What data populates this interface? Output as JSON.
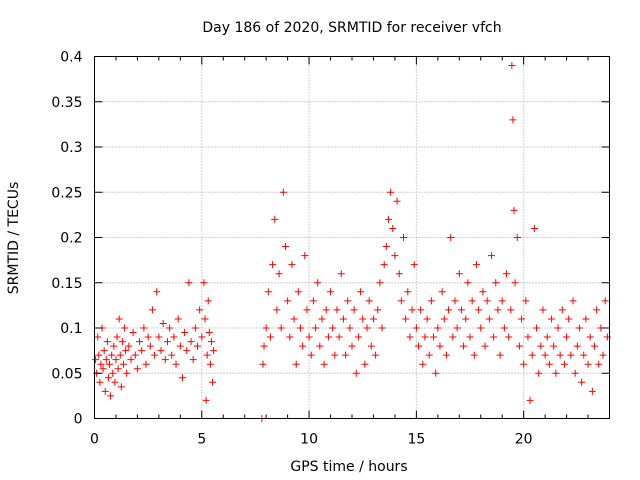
{
  "chart_data": {
    "type": "scatter",
    "title": "Day 186 of 2020, SRMTID for receiver vfch",
    "xlabel": "GPS time / hours",
    "ylabel": "SRMTID / TECUs",
    "xlim": [
      0,
      24
    ],
    "ylim": [
      0,
      0.4
    ],
    "xticks": [
      0,
      5,
      10,
      15,
      20
    ],
    "xtick_labels": [
      "0",
      "5",
      "10",
      "15",
      "20"
    ],
    "yticks": [
      0,
      0.05,
      0.1,
      0.15,
      0.2,
      0.25,
      0.3,
      0.35,
      0.4
    ],
    "ytick_labels": [
      "0",
      "0.05",
      "0.1",
      "0.15",
      "0.2",
      "0.25",
      "0.3",
      "0.35",
      "0.4"
    ],
    "grid": true,
    "marker": "+",
    "color": "#ff0000",
    "series": [
      {
        "name": "SRMTID",
        "points": [
          [
            0.05,
            0.065
          ],
          [
            0.1,
            0.05
          ],
          [
            0.15,
            0.09
          ],
          [
            0.2,
            0.07
          ],
          [
            0.25,
            0.04
          ],
          [
            0.3,
            0.06
          ],
          [
            0.35,
            0.1
          ],
          [
            0.4,
            0.055
          ],
          [
            0.45,
            0.075
          ],
          [
            0.5,
            0.03
          ],
          [
            0.55,
            0.065
          ],
          [
            0.6,
            0.085
          ],
          [
            0.65,
            0.045
          ],
          [
            0.7,
            0.06
          ],
          [
            0.75,
            0.025
          ],
          [
            0.8,
            0.07
          ],
          [
            0.85,
            0.05
          ],
          [
            0.9,
            0.08
          ],
          [
            0.95,
            0.04
          ],
          [
            1.0,
            0.065
          ],
          [
            1.05,
            0.09
          ],
          [
            1.1,
            0.055
          ],
          [
            1.15,
            0.11
          ],
          [
            1.2,
            0.07
          ],
          [
            1.25,
            0.035
          ],
          [
            1.3,
            0.085
          ],
          [
            1.35,
            0.06
          ],
          [
            1.4,
            0.1
          ],
          [
            1.45,
            0.075
          ],
          [
            1.5,
            0.05
          ],
          [
            1.6,
            0.08
          ],
          [
            1.7,
            0.065
          ],
          [
            1.8,
            0.095
          ],
          [
            1.9,
            0.07
          ],
          [
            2.0,
            0.055
          ],
          [
            2.1,
            0.085
          ],
          [
            2.2,
            0.075
          ],
          [
            2.3,
            0.1
          ],
          [
            2.4,
            0.06
          ],
          [
            2.5,
            0.09
          ],
          [
            2.6,
            0.08
          ],
          [
            2.7,
            0.12
          ],
          [
            2.8,
            0.07
          ],
          [
            2.9,
            0.14
          ],
          [
            3.0,
            0.09
          ],
          [
            3.1,
            0.075
          ],
          [
            3.2,
            0.105
          ],
          [
            3.3,
            0.065
          ],
          [
            3.4,
            0.085
          ],
          [
            3.5,
            0.1
          ],
          [
            3.6,
            0.07
          ],
          [
            3.7,
            0.09
          ],
          [
            3.8,
            0.06
          ],
          [
            3.9,
            0.11
          ],
          [
            4.0,
            0.08
          ],
          [
            4.1,
            0.045
          ],
          [
            4.2,
            0.095
          ],
          [
            4.3,
            0.075
          ],
          [
            4.4,
            0.15
          ],
          [
            4.5,
            0.085
          ],
          [
            4.6,
            0.065
          ],
          [
            4.7,
            0.1
          ],
          [
            4.8,
            0.08
          ],
          [
            4.9,
            0.12
          ],
          [
            5.0,
            0.09
          ],
          [
            5.1,
            0.15
          ],
          [
            5.15,
            0.11
          ],
          [
            5.2,
            0.02
          ],
          [
            5.25,
            0.07
          ],
          [
            5.3,
            0.13
          ],
          [
            5.35,
            0.095
          ],
          [
            5.4,
            0.06
          ],
          [
            5.45,
            0.085
          ],
          [
            5.5,
            0.04
          ],
          [
            5.55,
            0.075
          ],
          [
            7.8,
            0.0
          ],
          [
            7.85,
            0.06
          ],
          [
            7.9,
            0.08
          ],
          [
            8.0,
            0.1
          ],
          [
            8.1,
            0.14
          ],
          [
            8.2,
            0.09
          ],
          [
            8.3,
            0.17
          ],
          [
            8.4,
            0.22
          ],
          [
            8.5,
            0.12
          ],
          [
            8.6,
            0.16
          ],
          [
            8.7,
            0.1
          ],
          [
            8.8,
            0.25
          ],
          [
            8.9,
            0.19
          ],
          [
            9.0,
            0.13
          ],
          [
            9.1,
            0.09
          ],
          [
            9.2,
            0.17
          ],
          [
            9.3,
            0.11
          ],
          [
            9.4,
            0.06
          ],
          [
            9.5,
            0.14
          ],
          [
            9.6,
            0.1
          ],
          [
            9.7,
            0.08
          ],
          [
            9.8,
            0.18
          ],
          [
            9.9,
            0.12
          ],
          [
            10.0,
            0.09
          ],
          [
            10.1,
            0.07
          ],
          [
            10.2,
            0.13
          ],
          [
            10.3,
            0.1
          ],
          [
            10.4,
            0.15
          ],
          [
            10.5,
            0.08
          ],
          [
            10.6,
            0.11
          ],
          [
            10.7,
            0.06
          ],
          [
            10.8,
            0.12
          ],
          [
            10.9,
            0.09
          ],
          [
            11.0,
            0.14
          ],
          [
            11.1,
            0.1
          ],
          [
            11.2,
            0.07
          ],
          [
            11.3,
            0.12
          ],
          [
            11.4,
            0.09
          ],
          [
            11.5,
            0.16
          ],
          [
            11.6,
            0.11
          ],
          [
            11.7,
            0.07
          ],
          [
            11.8,
            0.13
          ],
          [
            11.9,
            0.1
          ],
          [
            12.0,
            0.08
          ],
          [
            12.1,
            0.12
          ],
          [
            12.2,
            0.05
          ],
          [
            12.3,
            0.09
          ],
          [
            12.4,
            0.14
          ],
          [
            12.5,
            0.11
          ],
          [
            12.6,
            0.06
          ],
          [
            12.7,
            0.1
          ],
          [
            12.8,
            0.13
          ],
          [
            12.9,
            0.08
          ],
          [
            13.0,
            0.11
          ],
          [
            13.1,
            0.07
          ],
          [
            13.2,
            0.12
          ],
          [
            13.3,
            0.15
          ],
          [
            13.4,
            0.1
          ],
          [
            13.5,
            0.17
          ],
          [
            13.6,
            0.19
          ],
          [
            13.7,
            0.22
          ],
          [
            13.8,
            0.25
          ],
          [
            13.9,
            0.21
          ],
          [
            14.0,
            0.18
          ],
          [
            14.1,
            0.24
          ],
          [
            14.2,
            0.16
          ],
          [
            14.3,
            0.13
          ],
          [
            14.4,
            0.2
          ],
          [
            14.5,
            0.11
          ],
          [
            14.6,
            0.14
          ],
          [
            14.7,
            0.09
          ],
          [
            14.8,
            0.12
          ],
          [
            14.9,
            0.17
          ],
          [
            15.0,
            0.1
          ],
          [
            15.1,
            0.08
          ],
          [
            15.2,
            0.12
          ],
          [
            15.3,
            0.06
          ],
          [
            15.4,
            0.09
          ],
          [
            15.5,
            0.11
          ],
          [
            15.6,
            0.07
          ],
          [
            15.7,
            0.13
          ],
          [
            15.8,
            0.09
          ],
          [
            15.9,
            0.05
          ],
          [
            16.0,
            0.1
          ],
          [
            16.1,
            0.08
          ],
          [
            16.2,
            0.14
          ],
          [
            16.3,
            0.11
          ],
          [
            16.4,
            0.07
          ],
          [
            16.5,
            0.12
          ],
          [
            16.6,
            0.2
          ],
          [
            16.7,
            0.09
          ],
          [
            16.8,
            0.13
          ],
          [
            16.9,
            0.1
          ],
          [
            17.0,
            0.16
          ],
          [
            17.1,
            0.12
          ],
          [
            17.2,
            0.08
          ],
          [
            17.3,
            0.11
          ],
          [
            17.4,
            0.15
          ],
          [
            17.5,
            0.09
          ],
          [
            17.6,
            0.13
          ],
          [
            17.7,
            0.07
          ],
          [
            17.8,
            0.17
          ],
          [
            17.9,
            0.12
          ],
          [
            18.0,
            0.1
          ],
          [
            18.1,
            0.14
          ],
          [
            18.2,
            0.08
          ],
          [
            18.3,
            0.13
          ],
          [
            18.4,
            0.11
          ],
          [
            18.5,
            0.18
          ],
          [
            18.6,
            0.09
          ],
          [
            18.7,
            0.15
          ],
          [
            18.8,
            0.12
          ],
          [
            18.9,
            0.07
          ],
          [
            19.0,
            0.13
          ],
          [
            19.1,
            0.1
          ],
          [
            19.2,
            0.16
          ],
          [
            19.3,
            0.09
          ],
          [
            19.4,
            0.12
          ],
          [
            19.45,
            0.39
          ],
          [
            19.5,
            0.33
          ],
          [
            19.55,
            0.23
          ],
          [
            19.6,
            0.15
          ],
          [
            19.7,
            0.2
          ],
          [
            19.8,
            0.08
          ],
          [
            19.9,
            0.11
          ],
          [
            20.0,
            0.06
          ],
          [
            20.1,
            0.13
          ],
          [
            20.2,
            0.09
          ],
          [
            20.3,
            0.02
          ],
          [
            20.4,
            0.07
          ],
          [
            20.5,
            0.21
          ],
          [
            20.6,
            0.1
          ],
          [
            20.7,
            0.05
          ],
          [
            20.8,
            0.08
          ],
          [
            20.9,
            0.12
          ],
          [
            21.0,
            0.07
          ],
          [
            21.1,
            0.09
          ],
          [
            21.2,
            0.06
          ],
          [
            21.3,
            0.11
          ],
          [
            21.4,
            0.08
          ],
          [
            21.5,
            0.05
          ],
          [
            21.6,
            0.1
          ],
          [
            21.7,
            0.07
          ],
          [
            21.8,
            0.12
          ],
          [
            21.9,
            0.06
          ],
          [
            22.0,
            0.09
          ],
          [
            22.1,
            0.11
          ],
          [
            22.2,
            0.07
          ],
          [
            22.3,
            0.13
          ],
          [
            22.4,
            0.05
          ],
          [
            22.5,
            0.08
          ],
          [
            22.6,
            0.1
          ],
          [
            22.7,
            0.04
          ],
          [
            22.8,
            0.07
          ],
          [
            22.9,
            0.11
          ],
          [
            23.0,
            0.06
          ],
          [
            23.1,
            0.09
          ],
          [
            23.2,
            0.03
          ],
          [
            23.3,
            0.08
          ],
          [
            23.4,
            0.12
          ],
          [
            23.5,
            0.06
          ],
          [
            23.6,
            0.1
          ],
          [
            23.7,
            0.07
          ],
          [
            23.8,
            0.13
          ],
          [
            23.9,
            0.09
          ]
        ]
      }
    ]
  }
}
